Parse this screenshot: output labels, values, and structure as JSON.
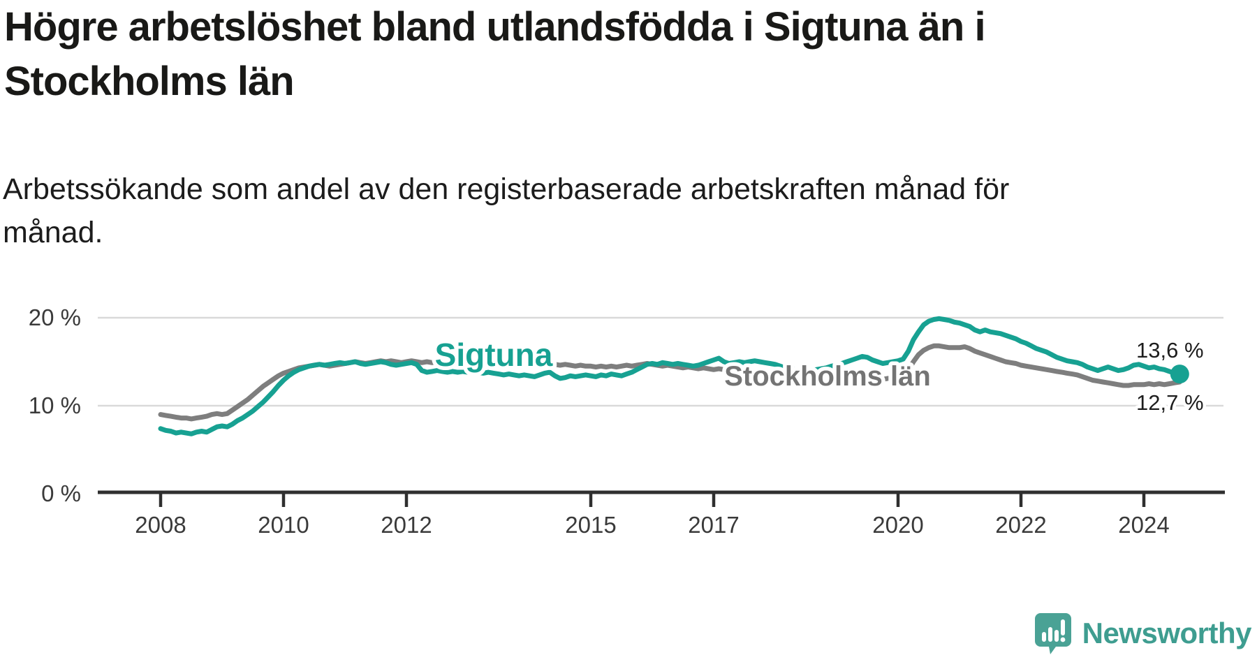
{
  "title": "Högre arbetslöshet bland utlandsfödda i Sigtuna än i Stockholms län",
  "subtitle": "Arbetssökande som andel av den registerbaserade arbetskraften månad för månad.",
  "chart_data": {
    "type": "line",
    "x_start": "2008-01",
    "frequency": "monthly",
    "x_ticks": [
      2008,
      2010,
      2012,
      2015,
      2017,
      2020,
      2022,
      2024
    ],
    "y_ticks": [
      {
        "value": 20,
        "label": "20 %"
      },
      {
        "value": 10,
        "label": "10 %"
      },
      {
        "value": 0,
        "label": "0 %"
      }
    ],
    "ylim": [
      0,
      21
    ],
    "grid": "horizontal-only",
    "y_gridlines_percent": [
      20,
      10
    ],
    "legend_position": "inline-labels-on-lines",
    "series": [
      {
        "name": "Sigtuna",
        "color": "#17a192",
        "label_color": "#17a192",
        "end_label": "13,6 %",
        "end_dot": true,
        "values": [
          7.4,
          7.2,
          7.1,
          6.9,
          7.0,
          6.9,
          6.8,
          7.0,
          7.1,
          7.0,
          7.3,
          7.6,
          7.7,
          7.6,
          7.9,
          8.3,
          8.6,
          9.0,
          9.4,
          9.9,
          10.4,
          11.0,
          11.6,
          12.3,
          12.9,
          13.4,
          13.8,
          14.1,
          14.3,
          14.5,
          14.6,
          14.7,
          14.6,
          14.7,
          14.8,
          14.9,
          14.8,
          14.9,
          15.0,
          14.8,
          14.7,
          14.8,
          14.9,
          15.0,
          14.9,
          14.7,
          14.6,
          14.7,
          14.8,
          14.9,
          14.7,
          14.0,
          13.8,
          13.9,
          14.0,
          13.9,
          13.8,
          13.9,
          13.8,
          13.9,
          13.8,
          13.9,
          13.8,
          13.7,
          13.8,
          13.7,
          13.6,
          13.5,
          13.6,
          13.5,
          13.4,
          13.5,
          13.4,
          13.3,
          13.5,
          13.7,
          13.8,
          13.4,
          13.1,
          13.2,
          13.4,
          13.3,
          13.4,
          13.5,
          13.4,
          13.3,
          13.5,
          13.4,
          13.6,
          13.5,
          13.4,
          13.6,
          13.8,
          14.1,
          14.4,
          14.7,
          14.8,
          14.7,
          14.9,
          14.8,
          14.7,
          14.8,
          14.7,
          14.6,
          14.5,
          14.6,
          14.8,
          15.0,
          15.2,
          15.4,
          15.0,
          14.8,
          14.9,
          15.0,
          14.9,
          15.0,
          15.1,
          15.0,
          14.9,
          14.8,
          14.7,
          14.5,
          14.3,
          14.2,
          14.1,
          14.0,
          14.1,
          14.0,
          14.1,
          14.2,
          14.3,
          14.5,
          14.6,
          14.8,
          15.0,
          15.2,
          15.4,
          15.6,
          15.5,
          15.2,
          15.0,
          14.8,
          14.9,
          15.0,
          15.1,
          15.3,
          16.2,
          17.5,
          18.4,
          19.2,
          19.6,
          19.8,
          19.9,
          19.8,
          19.7,
          19.5,
          19.4,
          19.2,
          19.0,
          18.6,
          18.4,
          18.6,
          18.4,
          18.3,
          18.2,
          18.0,
          17.8,
          17.6,
          17.3,
          17.1,
          16.8,
          16.5,
          16.3,
          16.1,
          15.8,
          15.5,
          15.3,
          15.1,
          15.0,
          14.9,
          14.7,
          14.4,
          14.2,
          14.0,
          14.2,
          14.4,
          14.2,
          14.0,
          14.1,
          14.3,
          14.6,
          14.7,
          14.5,
          14.3,
          14.4,
          14.2,
          14.1,
          13.9,
          13.7,
          13.6
        ]
      },
      {
        "name": "Stockholms län",
        "color": "#7e7e7e",
        "label_color": "#747474",
        "end_label": "12,7 %",
        "end_dot": false,
        "values": [
          9.0,
          8.9,
          8.8,
          8.7,
          8.6,
          8.6,
          8.5,
          8.6,
          8.7,
          8.8,
          9.0,
          9.1,
          9.0,
          9.1,
          9.5,
          9.9,
          10.3,
          10.7,
          11.2,
          11.7,
          12.2,
          12.6,
          13.0,
          13.4,
          13.7,
          13.9,
          14.1,
          14.3,
          14.4,
          14.5,
          14.6,
          14.7,
          14.6,
          14.5,
          14.6,
          14.7,
          14.8,
          14.9,
          15.0,
          14.9,
          14.8,
          14.9,
          15.0,
          15.1,
          15.0,
          15.1,
          15.0,
          14.9,
          15.0,
          15.1,
          15.0,
          14.9,
          15.0,
          14.9,
          15.0,
          15.1,
          15.0,
          14.9,
          15.0,
          15.1,
          15.0,
          15.1,
          15.0,
          15.1,
          15.0,
          14.9,
          15.0,
          14.9,
          14.8,
          14.9,
          14.8,
          14.9,
          14.8,
          14.9,
          14.8,
          14.7,
          14.8,
          14.7,
          14.6,
          14.7,
          14.6,
          14.5,
          14.6,
          14.5,
          14.5,
          14.4,
          14.5,
          14.4,
          14.5,
          14.4,
          14.5,
          14.6,
          14.5,
          14.6,
          14.7,
          14.8,
          14.7,
          14.6,
          14.5,
          14.6,
          14.5,
          14.4,
          14.3,
          14.4,
          14.3,
          14.2,
          14.3,
          14.2,
          14.1,
          14.2,
          14.1,
          14.0,
          13.9,
          14.0,
          13.9,
          13.8,
          13.9,
          13.8,
          13.7,
          13.6,
          13.5,
          13.4,
          13.5,
          13.4,
          13.3,
          13.2,
          13.1,
          13.0,
          13.1,
          13.0,
          12.9,
          13.0,
          12.9,
          12.8,
          12.9,
          13.0,
          12.9,
          13.0,
          13.1,
          13.0,
          12.9,
          13.0,
          13.1,
          13.2,
          13.3,
          13.4,
          14.0,
          15.0,
          15.8,
          16.3,
          16.6,
          16.8,
          16.8,
          16.7,
          16.6,
          16.6,
          16.6,
          16.7,
          16.5,
          16.2,
          16.0,
          15.8,
          15.6,
          15.4,
          15.2,
          15.0,
          14.9,
          14.8,
          14.6,
          14.5,
          14.4,
          14.3,
          14.2,
          14.1,
          14.0,
          13.9,
          13.8,
          13.7,
          13.6,
          13.5,
          13.3,
          13.1,
          12.9,
          12.8,
          12.7,
          12.6,
          12.5,
          12.4,
          12.3,
          12.3,
          12.4,
          12.4,
          12.4,
          12.5,
          12.4,
          12.5,
          12.4,
          12.5,
          12.6,
          12.7
        ]
      }
    ]
  },
  "branding": {
    "logo_text": "Newsworthy",
    "logo_color": "#3e9d90",
    "logo_icon": "newsworthy-speech-bubble-bar-chart-icon"
  }
}
